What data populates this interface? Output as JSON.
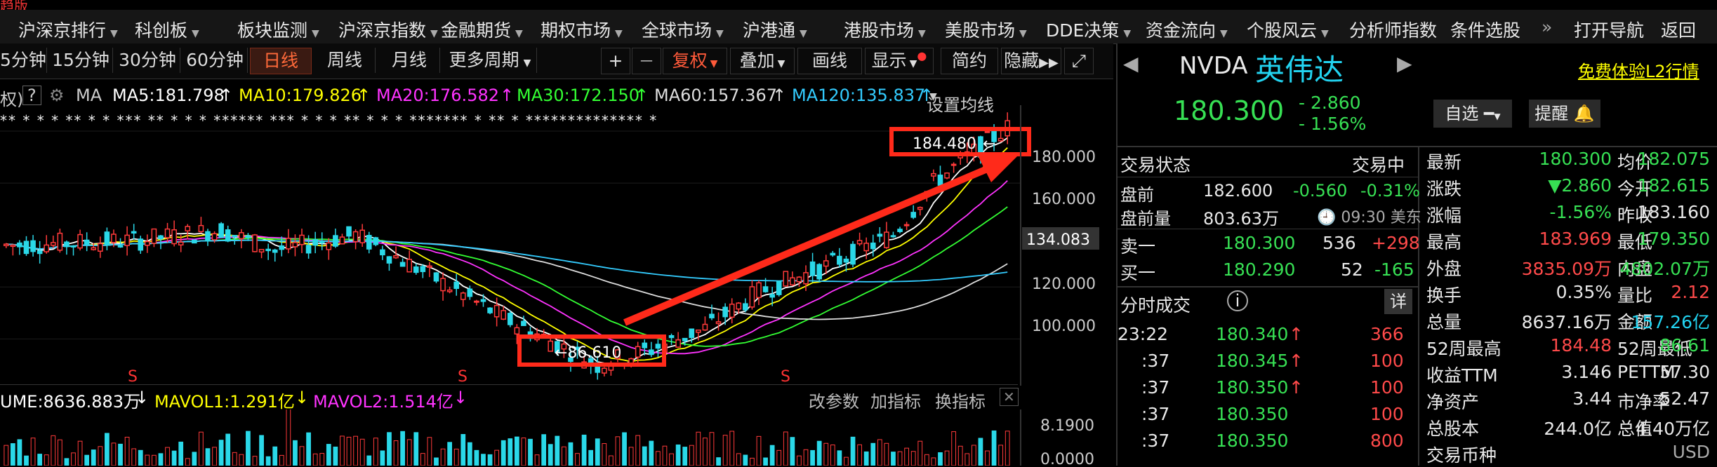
{
  "top_label": "趋版",
  "menu": {
    "items": [
      {
        "label": "沪深京排行",
        "dd": true
      },
      {
        "label": "科创板",
        "dd": true
      },
      {
        "label": "板块监测",
        "dd": true
      },
      {
        "label": "沪深京指数",
        "dd": true
      },
      {
        "label": "金融期货",
        "dd": true
      },
      {
        "label": "期权市场",
        "dd": true
      },
      {
        "label": "全球市场",
        "dd": true
      },
      {
        "label": "沪港通",
        "dd": true
      },
      {
        "label": "港股市场",
        "dd": true
      },
      {
        "label": "美股市场",
        "dd": true
      },
      {
        "label": "DDE决策",
        "dd": true
      },
      {
        "label": "资金流向",
        "dd": true
      },
      {
        "label": "个股风云",
        "dd": true
      },
      {
        "label": "分析师指数",
        "dd": false
      },
      {
        "label": "条件选股",
        "dd": false
      },
      {
        "label": "»",
        "dd": false
      },
      {
        "label": "打开导航",
        "dd": false
      },
      {
        "label": "返回",
        "dd": false
      }
    ]
  },
  "periods": [
    "5分钟",
    "15分钟",
    "30分钟",
    "60分钟",
    "日线",
    "周线",
    "月线",
    "更多周期"
  ],
  "active_period": "日线",
  "tools": {
    "plus": "+",
    "minus": "—",
    "fuquan": "复权",
    "diejia": "叠加",
    "huaxian": "画线",
    "xianshi": "显示",
    "jianyue": "简约",
    "yincang": "隐藏"
  },
  "ma": {
    "prefix": "权)",
    "question": "?",
    "label": "MA",
    "ma5": "MA5:181.798",
    "ma10": "MA10:179.826",
    "ma20": "MA20:176.582",
    "ma30": "MA30:172.150",
    "ma60": "MA60:157.367",
    "ma120": "MA120:135.837",
    "settings": "设置均线",
    "colors": {
      "ma5": "#ffffff",
      "ma10": "#ffff00",
      "ma20": "#ff33ff",
      "ma30": "#33ff33",
      "ma60": "#dddddd",
      "ma120": "#33ccff"
    }
  },
  "stars": "** * * * **   *  * ***   **      *   *  * ****** *** *  *     *    ** *  * * ******* * ** *  ************** *",
  "chart": {
    "y_ticks": [
      "180.000",
      "160.000",
      "120.000",
      "100.000"
    ],
    "current_price_tag": "134.083",
    "high_annotation": "184.480",
    "high_arrow": "←",
    "low_annotation": "←86.610",
    "s_markers": [
      "S",
      "S",
      "S"
    ]
  },
  "chart_data": {
    "type": "candlestick",
    "ylim": [
      82,
      190
    ],
    "y_ticks": [
      100,
      120,
      160,
      180
    ],
    "annotations": {
      "high": 184.48,
      "low": 86.61,
      "price_tag": 134.083
    }
  },
  "volume": {
    "vol": "UME:8636.883万",
    "mavol1": "MAVOL1:1.291亿",
    "mavol2": "MAVOL2:1.514亿",
    "gaicanshu": "改参数",
    "jiazhibiao": "加指标",
    "huanzhibiao": "换指标",
    "axis_top": "8.1900",
    "axis_bottom": "0.0000"
  },
  "quote": {
    "ticker": "NVDA",
    "name": "英伟达",
    "free_trial": "免费体验L2行情",
    "price": "180.300",
    "change": "- 2.860",
    "change_pct": "- 1.56%",
    "zixuan": "自选",
    "tixing": "提醒",
    "status_label": "交易状态",
    "status_value": "交易中",
    "premarket_label": "盘前",
    "premarket_price": "182.600",
    "premarket_chg": "-0.560",
    "premarket_pct": "-0.31%",
    "premarket_vol_label": "盘前量",
    "premarket_vol": "803.63万",
    "premarket_time": "09:30 美东",
    "sell1_label": "卖一",
    "sell1_price": "180.300",
    "sell1_vol": "536",
    "sell1_chg": "+298",
    "buy1_label": "买一",
    "buy1_price": "180.290",
    "buy1_vol": "52",
    "buy1_chg": "-165",
    "ticks_label": "分时成交",
    "ticks_detail": "详",
    "ticks": [
      {
        "time": "23:22",
        "price": "180.340",
        "arrow": "↑",
        "vol": "366"
      },
      {
        "time": ":37",
        "price": "180.345",
        "arrow": "↑",
        "vol": "100"
      },
      {
        "time": ":37",
        "price": "180.350",
        "arrow": "↑",
        "vol": "100"
      },
      {
        "time": ":37",
        "price": "180.350",
        "arrow": "",
        "vol": "100"
      },
      {
        "time": ":37",
        "price": "180.350",
        "arrow": "",
        "vol": "800"
      }
    ],
    "stats": [
      {
        "l1": "最新",
        "v1": "180.300",
        "c1": "g",
        "l2": "均价",
        "v2": "182.075",
        "c2": "g"
      },
      {
        "l1": "涨跌",
        "v1": "▼2.860",
        "c1": "g",
        "l2": "今开",
        "v2": "182.615",
        "c2": "g"
      },
      {
        "l1": "涨幅",
        "v1": "-1.56%",
        "c1": "g",
        "l2": "昨收",
        "v2": "183.160",
        "c2": "w"
      },
      {
        "l1": "最高",
        "v1": "183.969",
        "c1": "r",
        "l2": "最低",
        "v2": "179.350",
        "c2": "g"
      },
      {
        "l1": "外盘",
        "v1": "3835.09万",
        "c1": "r",
        "l2": "内盘",
        "v2": "4802.07万",
        "c2": "g"
      },
      {
        "l1": "换手",
        "v1": "0.35%",
        "c1": "w",
        "l2": "量比",
        "v2": "2.12",
        "c2": "r"
      },
      {
        "l1": "总量",
        "v1": "8637.16万",
        "c1": "w",
        "l2": "金额",
        "v2": "157.26亿",
        "c2": "cyan"
      },
      {
        "l1": "52周最高",
        "v1": "184.48",
        "c1": "r",
        "l2": "52周最低",
        "v2": "86.61",
        "c2": "g"
      },
      {
        "l1": "收益TTM",
        "v1": "3.146",
        "c1": "w",
        "l2": "PETTM",
        "v2": "57.30",
        "c2": "w"
      },
      {
        "l1": "净资产",
        "v1": "3.44",
        "c1": "w",
        "l2": "市净率",
        "v2": "52.47",
        "c2": "w"
      },
      {
        "l1": "总股本",
        "v1": "244.0亿",
        "c1": "w",
        "l2": "总值",
        "v2": "4.40万亿",
        "c2": "w"
      },
      {
        "l1": "交易币种",
        "v1": "",
        "c1": "w",
        "l2": "",
        "v2": "USD",
        "c2": "grey"
      }
    ]
  }
}
